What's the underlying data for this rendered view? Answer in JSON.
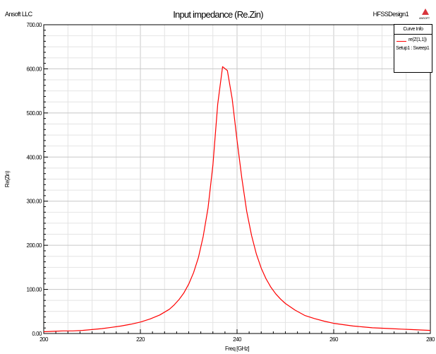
{
  "header": {
    "company": "Ansoft LLC",
    "design": "HFSSDesign1",
    "logo_text": "ANSOFT"
  },
  "legend": {
    "title": "Curve Info",
    "entry_name": "re(Z(1,1))",
    "entry_setup": "Setup1 : Sweep1"
  },
  "chart_data": {
    "type": "line",
    "title": "Input impedance (Re.Zin)",
    "xlabel": "Freq [GHz]",
    "ylabel": "Re(Zin)",
    "xlim": [
      200,
      280
    ],
    "ylim": [
      0,
      700
    ],
    "x_ticks": [
      "200",
      "220",
      "240",
      "260",
      "280"
    ],
    "y_ticks": [
      "0.00",
      "100.00",
      "200.00",
      "300.00",
      "400.00",
      "500.00",
      "600.00",
      "700.00"
    ],
    "grid": true,
    "legend_position": "top-right",
    "series": [
      {
        "name": "re(Z(1,1))",
        "color": "#ff0000",
        "x": [
          200,
          202,
          204,
          206,
          208,
          210,
          212,
          214,
          216,
          218,
          220,
          222,
          224,
          226,
          227,
          228,
          229,
          230,
          231,
          232,
          233,
          234,
          235,
          236,
          237,
          238,
          239,
          240,
          241,
          242,
          243,
          244,
          245,
          246,
          247,
          248,
          249,
          250,
          252,
          254,
          256,
          258,
          260,
          262,
          264,
          266,
          268,
          270,
          272,
          274,
          276,
          278,
          280
        ],
        "values": [
          4,
          5,
          6,
          6,
          7,
          9,
          11,
          14,
          17,
          21,
          26,
          33,
          42,
          55,
          65,
          77,
          92,
          112,
          138,
          172,
          220,
          285,
          382,
          520,
          605,
          596,
          532,
          438,
          352,
          277,
          222,
          180,
          148,
          124,
          105,
          90,
          78,
          68,
          53,
          41,
          34,
          28,
          23,
          20,
          17,
          15,
          13,
          12,
          11,
          10,
          9,
          8,
          7
        ]
      }
    ]
  }
}
